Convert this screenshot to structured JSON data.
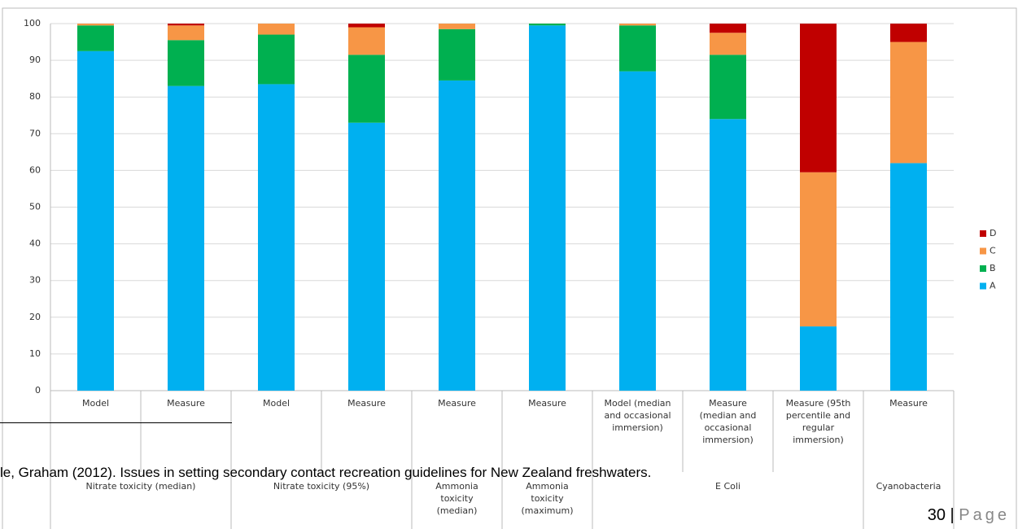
{
  "chart_data": {
    "type": "stacked_bar",
    "category_groups": [
      {
        "label": "Nitrate toxicity (median)",
        "categories": [
          "Model",
          "Measure"
        ]
      },
      {
        "label": "Nitrate toxicity (95%)",
        "categories": [
          "Model",
          "Measure"
        ]
      },
      {
        "label": "Ammonia\ntoxicity\n(median)",
        "categories": [
          "Measure"
        ]
      },
      {
        "label": "Ammonia\ntoxicity\n(maximum)",
        "categories": [
          "Measure"
        ]
      },
      {
        "label": "E Coli",
        "categories": [
          "Model (median\nand occasional\nimmersion)",
          "Measure\n(median and\noccasional\nimmersion)",
          "Measure (95th\npercentile and\nregular\nimmersion)"
        ]
      },
      {
        "label": "Cyanobacteria",
        "categories": [
          "Measure"
        ]
      }
    ],
    "series": [
      {
        "name": "A",
        "color": "#00b0f0",
        "values": [
          92.5,
          83,
          83.5,
          73,
          84.5,
          99.5,
          87,
          74,
          17.5,
          62
        ]
      },
      {
        "name": "B",
        "color": "#00b050",
        "values": [
          7,
          12.5,
          13.5,
          18.5,
          14,
          0.5,
          12.5,
          17.5,
          0,
          0
        ]
      },
      {
        "name": "C",
        "color": "#f79646",
        "values": [
          0.5,
          4,
          3,
          7.5,
          1.5,
          0,
          0.5,
          6,
          42,
          33
        ]
      },
      {
        "name": "D",
        "color": "#c00000",
        "values": [
          0,
          0.5,
          0,
          1,
          0,
          0,
          0,
          2.5,
          40.5,
          5
        ]
      }
    ],
    "ylim": [
      0,
      100
    ],
    "yticks": [
      0,
      10,
      20,
      30,
      40,
      50,
      60,
      70,
      80,
      90,
      100
    ],
    "grid": true,
    "legend": "right"
  },
  "footnote": "le, Graham (2012). Issues in setting secondary contact recreation guidelines for New Zealand freshwaters.",
  "page_number": {
    "number": "30",
    "separator": "|",
    "word": "Page"
  }
}
